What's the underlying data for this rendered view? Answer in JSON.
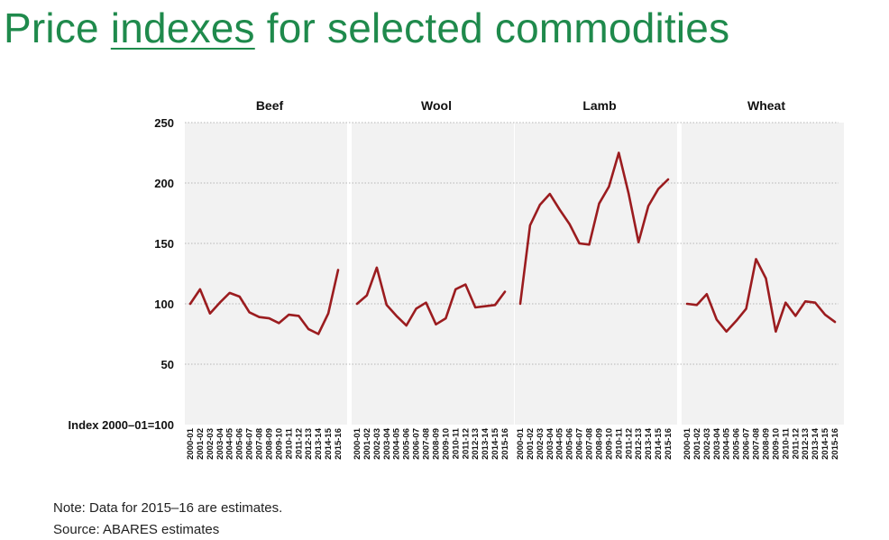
{
  "title": {
    "part1": "Price ",
    "part2_underlined": "indexes",
    "part3": " for selected commodities"
  },
  "colors": {
    "title": "#1f8a4c",
    "line": "#9b1c1f",
    "panel_bg": "#f2f2f2",
    "grid": "#b5b5b5"
  },
  "notes": {
    "note": "Note: Data for 2015–16 are estimates.",
    "source": "Source: ABARES estimates"
  },
  "chart_data": {
    "type": "line",
    "ylabel": "Index 2000–01=100",
    "ylim": [
      0,
      250
    ],
    "yticks": [
      50,
      100,
      150,
      200,
      250
    ],
    "grid": "horizontal dotted",
    "categories": [
      "2000-01",
      "2001-02",
      "2002-03",
      "2003-04",
      "2004-05",
      "2005-06",
      "2006-07",
      "2007-08",
      "2008-09",
      "2009-10",
      "2010-11",
      "2011-12",
      "2012-13",
      "2013-14",
      "2014-15",
      "2015-16"
    ],
    "panels": [
      {
        "title": "Beef",
        "values": [
          100,
          112,
          92,
          101,
          109,
          106,
          93,
          89,
          88,
          84,
          91,
          90,
          79,
          75,
          92,
          128
        ]
      },
      {
        "title": "Wool",
        "values": [
          100,
          107,
          130,
          99,
          90,
          82,
          96,
          101,
          83,
          88,
          112,
          116,
          97,
          98,
          99,
          110
        ]
      },
      {
        "title": "Lamb",
        "values": [
          100,
          165,
          182,
          191,
          178,
          166,
          150,
          149,
          183,
          197,
          225,
          191,
          151,
          181,
          195,
          203
        ]
      },
      {
        "title": "Wheat",
        "values": [
          100,
          99,
          108,
          87,
          77,
          86,
          96,
          137,
          121,
          77,
          101,
          90,
          102,
          101,
          91,
          85
        ]
      }
    ]
  }
}
